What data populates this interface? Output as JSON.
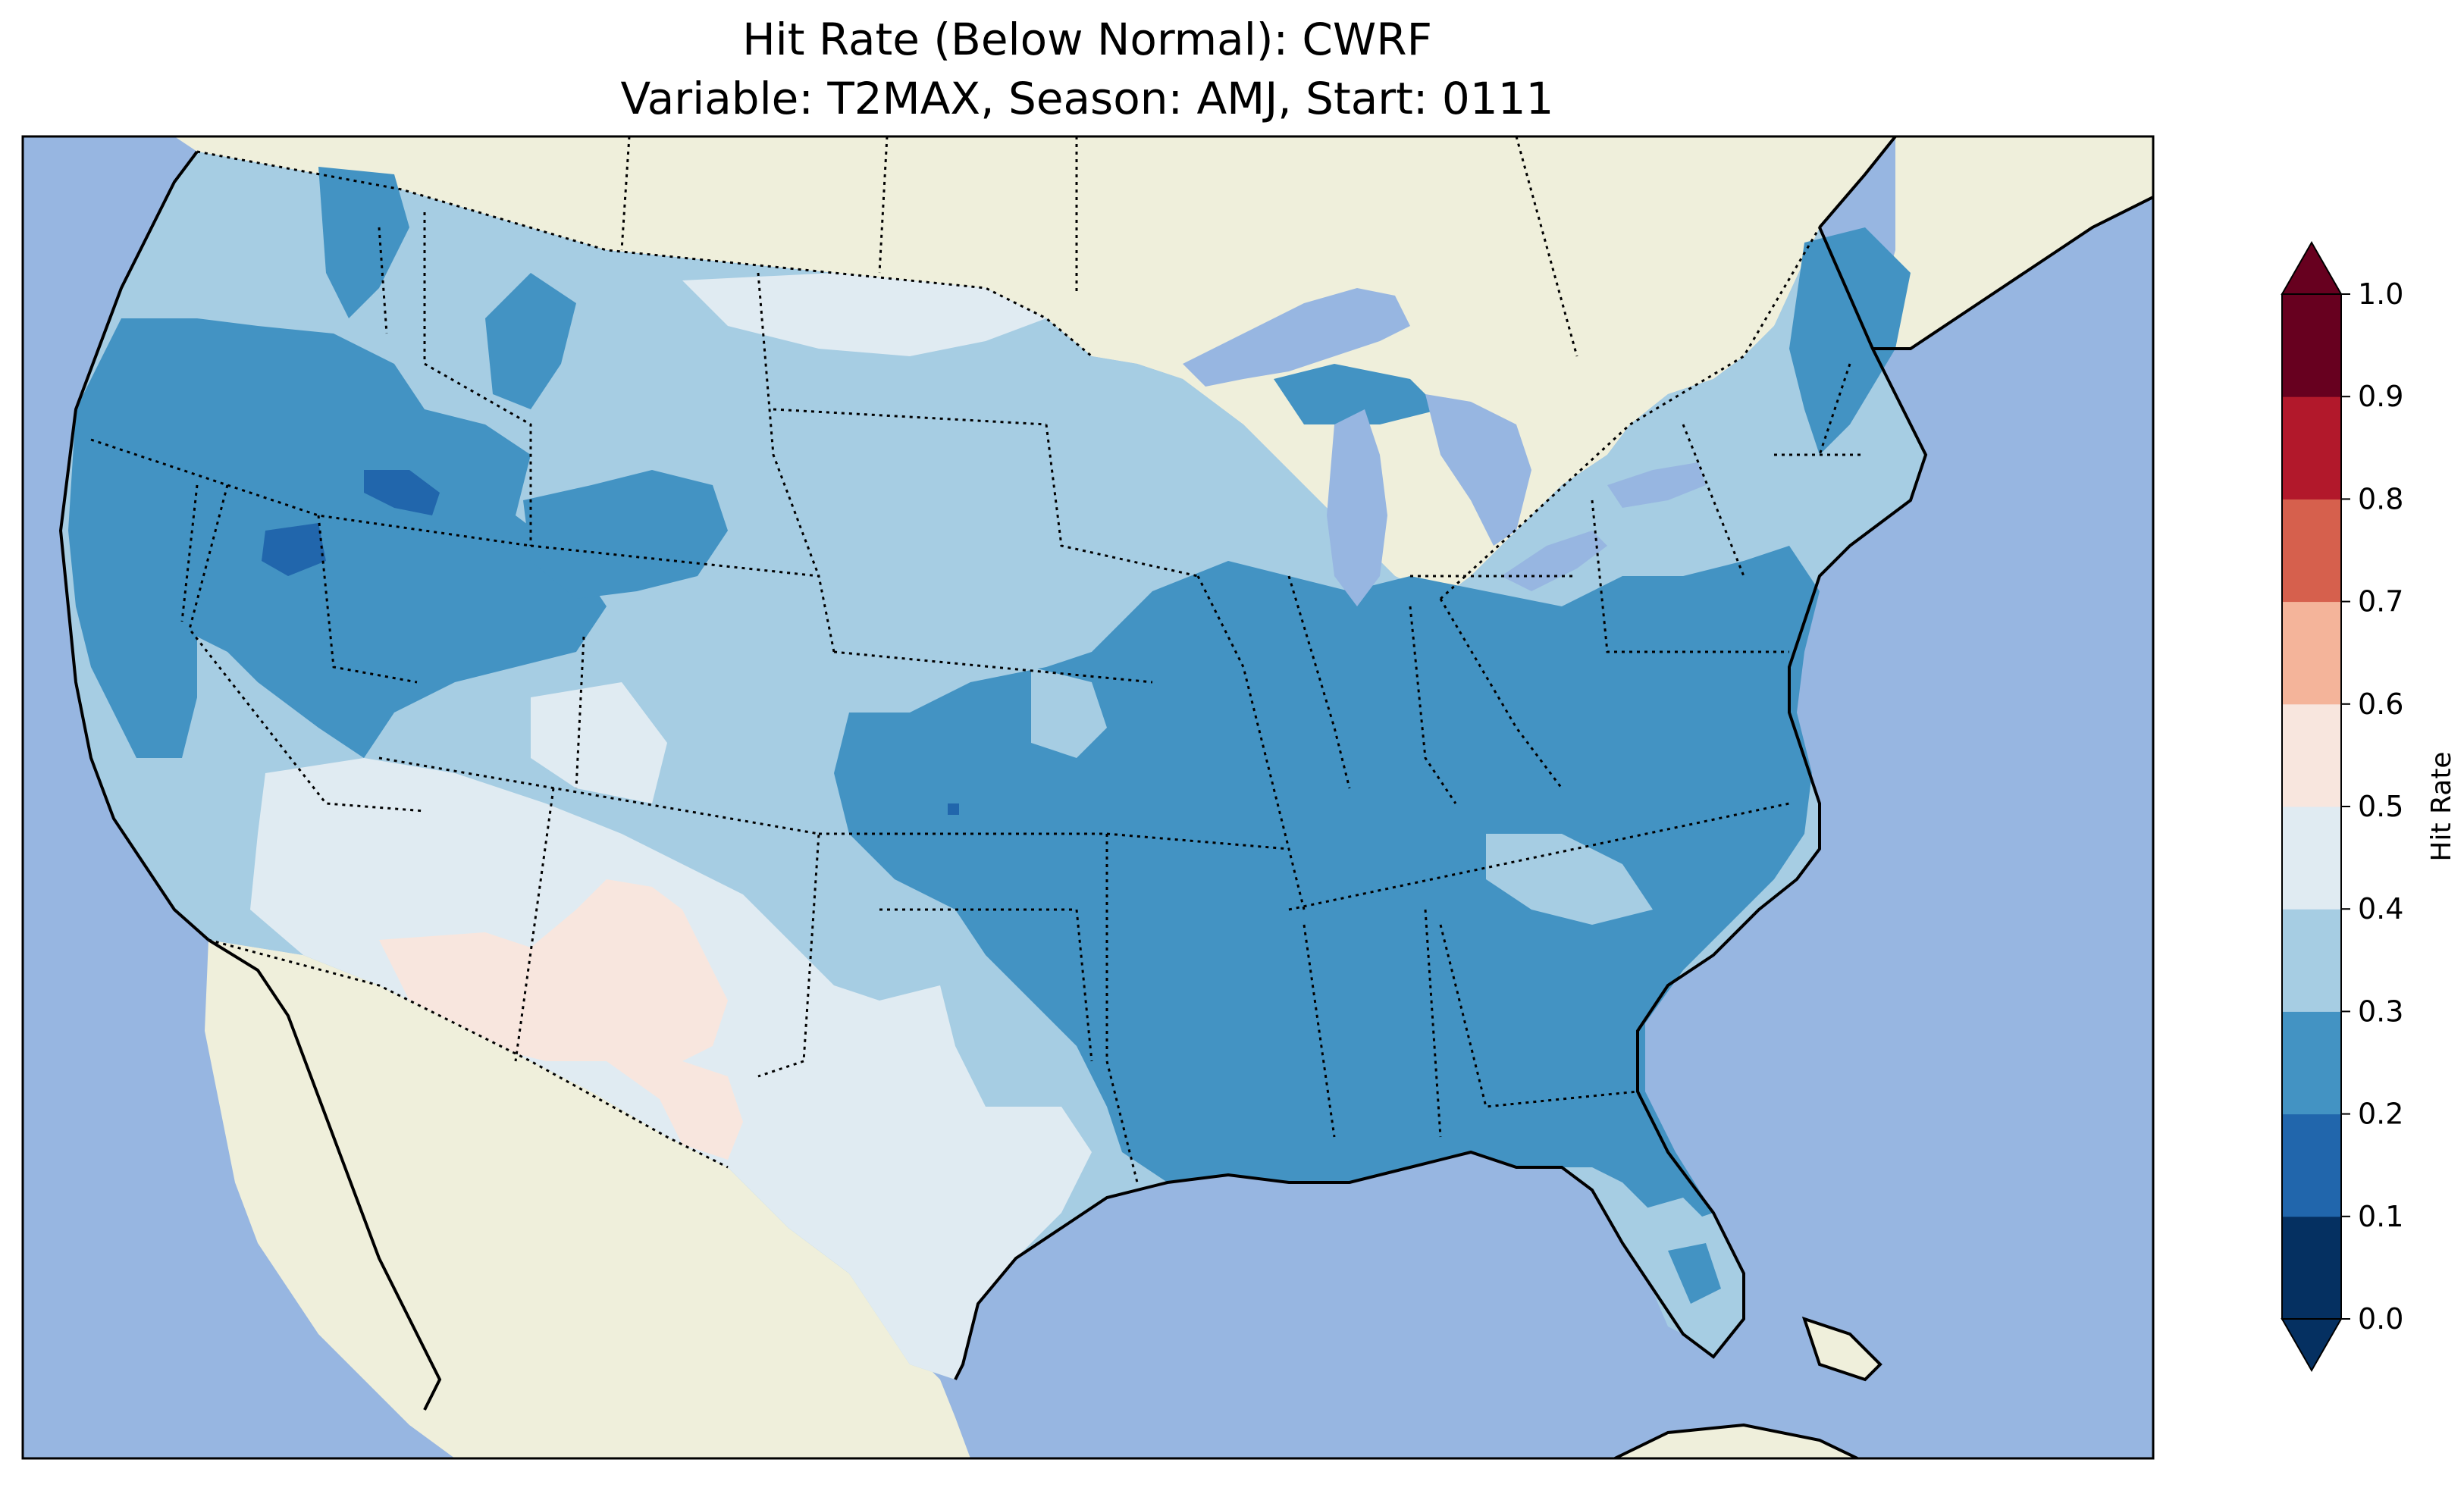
{
  "title": {
    "line1": "Hit Rate (Below Normal): CWRF",
    "line2": "Variable: T2MAX, Season: AMJ, Start: 0111"
  },
  "colors": {
    "ocean": "#97b6e1",
    "land": "#efefdb",
    "lakes": "#97b6e1"
  },
  "colorbar": {
    "label": "Hit Rate",
    "ticks": [
      "0.0",
      "0.1",
      "0.2",
      "0.3",
      "0.4",
      "0.5",
      "0.6",
      "0.7",
      "0.8",
      "0.9",
      "1.0"
    ],
    "levels": [
      {
        "range": [
          0.0,
          0.1
        ],
        "color": "#053061"
      },
      {
        "range": [
          0.1,
          0.2
        ],
        "color": "#2166ac"
      },
      {
        "range": [
          0.2,
          0.3
        ],
        "color": "#4393c3"
      },
      {
        "range": [
          0.3,
          0.4
        ],
        "color": "#a6cde3"
      },
      {
        "range": [
          0.4,
          0.5
        ],
        "color": "#e0ebf2"
      },
      {
        "range": [
          0.5,
          0.6
        ],
        "color": "#f8e6de"
      },
      {
        "range": [
          0.6,
          0.7
        ],
        "color": "#f4b49a"
      },
      {
        "range": [
          0.7,
          0.8
        ],
        "color": "#d6604d"
      },
      {
        "range": [
          0.8,
          0.9
        ],
        "color": "#b2182b"
      },
      {
        "range": [
          0.9,
          1.0
        ],
        "color": "#67001f"
      }
    ],
    "extend": "both"
  },
  "map_regions": [
    {
      "region": "Pacific Northwest coast",
      "value_class": [
        0.2,
        0.3
      ]
    },
    {
      "region": "Northern Rockies / Montana",
      "value_class": [
        0.3,
        0.4
      ]
    },
    {
      "region": "Central Idaho / Oregon cores",
      "value_class": [
        0.1,
        0.2
      ]
    },
    {
      "region": "Northern Plains (ND/SD)",
      "value_class": [
        0.3,
        0.4
      ]
    },
    {
      "region": "Southwest (AZ/NM/UT south)",
      "value_class": [
        0.4,
        0.5
      ]
    },
    {
      "region": "Southern AZ / NM / West TX",
      "value_class": [
        0.5,
        0.6
      ]
    },
    {
      "region": "Midwest, Ohio Valley, Southeast",
      "value_class": [
        0.2,
        0.3
      ]
    },
    {
      "region": "Great Lakes / Northeast",
      "value_class": [
        0.3,
        0.4
      ]
    },
    {
      "region": "South Texas",
      "value_class": [
        0.4,
        0.5
      ]
    },
    {
      "region": "South Florida",
      "value_class": [
        0.3,
        0.4
      ]
    }
  ]
}
